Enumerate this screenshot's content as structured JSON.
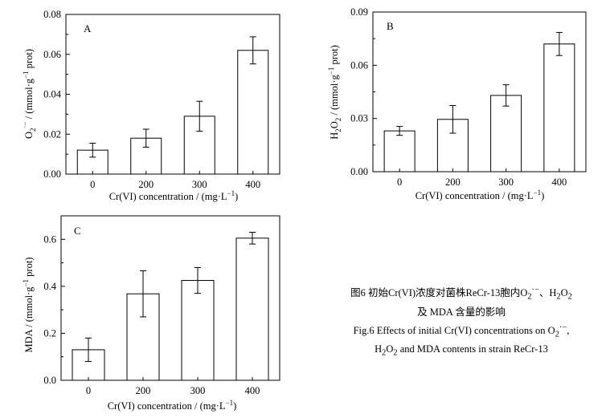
{
  "chart_data": [
    {
      "type": "bar",
      "panel_label": "A",
      "categories": [
        "0",
        "200",
        "300",
        "400"
      ],
      "values": [
        0.012,
        0.018,
        0.029,
        0.062
      ],
      "errors": [
        0.0035,
        0.0045,
        0.0075,
        0.0068
      ],
      "xlabel_main": "Cr(VI) concentration / (mg·L",
      "xlabel_sup": "−1",
      "xlabel_end": ")",
      "ylabel_main": "O",
      "ylabel_sub": "2",
      "ylabel_sup": "·−",
      "ylabel_rest": " / (mmol·g",
      "ylabel_sup2": "−1",
      "ylabel_end": " prot)",
      "ylim": [
        0,
        0.08
      ],
      "yticks": [
        "0.00",
        "0.02",
        "0.04",
        "0.06",
        "0.08"
      ],
      "ytick_values": [
        0,
        0.02,
        0.04,
        0.06,
        0.08
      ]
    },
    {
      "type": "bar",
      "panel_label": "B",
      "categories": [
        "0",
        "200",
        "300",
        "400"
      ],
      "values": [
        0.023,
        0.0295,
        0.043,
        0.072
      ],
      "errors": [
        0.0025,
        0.0078,
        0.006,
        0.0065
      ],
      "xlabel_main": "Cr(VI) concentration / (mg·L",
      "xlabel_sup": "−1",
      "xlabel_end": ")",
      "ylabel_main": "H",
      "ylabel_sub": "2",
      "ylabel_mid": "O",
      "ylabel_sub2": "2",
      "ylabel_rest": " / (mmol·g",
      "ylabel_sup2": "−1",
      "ylabel_end": " prot)",
      "ylim": [
        0,
        0.09
      ],
      "yticks": [
        "0.00",
        "0.03",
        "0.06",
        "0.09"
      ],
      "ytick_values": [
        0,
        0.03,
        0.06,
        0.09
      ]
    },
    {
      "type": "bar",
      "panel_label": "C",
      "categories": [
        "0",
        "200",
        "300",
        "400"
      ],
      "values": [
        0.13,
        0.368,
        0.425,
        0.605
      ],
      "errors": [
        0.05,
        0.098,
        0.055,
        0.025
      ],
      "xlabel_main": "Cr(VI) concentration / (mg·L",
      "xlabel_sup": "−1",
      "xlabel_end": ")",
      "ylabel_main": "MDA / (mmol·g",
      "ylabel_sup2": "−1",
      "ylabel_end": " prot)",
      "ylim": [
        0,
        0.7
      ],
      "yticks": [
        "0.0",
        "0.2",
        "0.4",
        "0.6"
      ],
      "ytick_values": [
        0,
        0.2,
        0.4,
        0.6
      ]
    }
  ],
  "caption": {
    "cn_line1_pre": "图6   初始Cr(VI)浓度对菌株ReCr-13胞内O",
    "cn_line1_sub": "2",
    "cn_line1_sup": "·−",
    "cn_line1_mid": "、H",
    "cn_line1_sub2": "2",
    "cn_line1_o": "O",
    "cn_line1_sub3": "2",
    "cn_line2": "及 MDA 含量的影响",
    "en_line1_pre": "Fig.6    Effects of initial Cr(VI) concentrations on O",
    "en_line1_sub": "2",
    "en_line1_sup": "·−",
    "en_line1_end": ",",
    "en_line2_pre": "H",
    "en_line2_sub": "2",
    "en_line2_mid": "O",
    "en_line2_sub2": "2",
    "en_line2_end": " and MDA contents in strain ReCr-13"
  }
}
